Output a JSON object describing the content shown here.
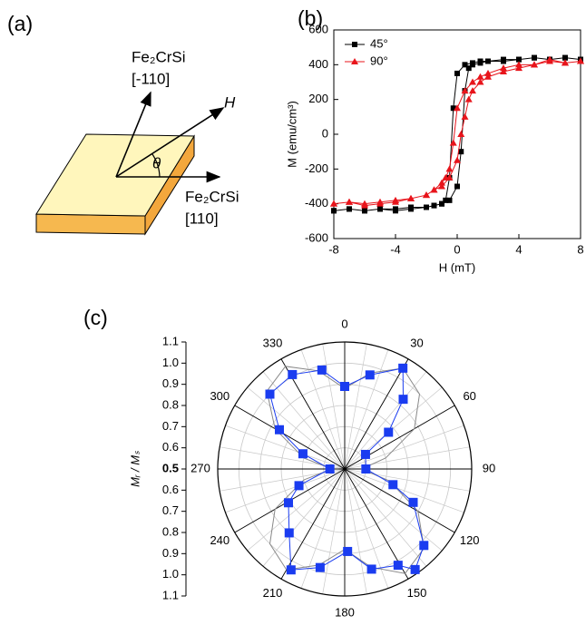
{
  "panel_labels": [
    "(a)",
    "(b)",
    "(c)"
  ],
  "diagram": {
    "axis_1": {
      "material": "Fe₂CrSi",
      "direction": "[-110]"
    },
    "axis_2": {
      "material": "Fe₂CrSi",
      "direction": "[110]"
    },
    "field": "H",
    "angle": "θ"
  },
  "chart_data": [
    {
      "type": "line",
      "x_label": "H (mT)",
      "y_label": "M (emu/cm³)",
      "xlim": [
        -8,
        8
      ],
      "xticks": [
        -8,
        -4,
        0,
        4,
        8
      ],
      "ylim": [
        -600,
        600
      ],
      "yticks": [
        -600,
        -400,
        -200,
        0,
        200,
        400,
        600
      ],
      "legend": "upper left",
      "series": [
        {
          "name": "45°",
          "color": "#000000",
          "marker": "square",
          "x": [
            -8,
            -7,
            -6,
            -5,
            -4,
            -3,
            -2,
            -1.5,
            -1,
            -0.5,
            0,
            0.25,
            0.5,
            0.75,
            1,
            1.5,
            2,
            3,
            4,
            5,
            6,
            7,
            8,
            8,
            7,
            6,
            5,
            4,
            3,
            2,
            1.5,
            1,
            0.5,
            0,
            -0.25,
            -0.5,
            -0.75,
            -1,
            -1.5,
            -2,
            -3,
            -4,
            -5,
            -6,
            -7,
            -8
          ],
          "values": [
            -440,
            -430,
            -440,
            -430,
            -430,
            -420,
            -420,
            -410,
            -400,
            -380,
            -300,
            -100,
            250,
            380,
            400,
            410,
            420,
            430,
            430,
            440,
            430,
            440,
            430,
            430,
            440,
            430,
            440,
            430,
            420,
            420,
            420,
            410,
            400,
            350,
            150,
            -250,
            -380,
            -400,
            -410,
            -420,
            -430,
            -440,
            -430,
            -440,
            -430,
            -440
          ]
        },
        {
          "name": "90°",
          "color": "#e8141b",
          "marker": "triangle",
          "x": [
            -8,
            -7,
            -6,
            -5,
            -4,
            -3,
            -2,
            -1.5,
            -1,
            -0.5,
            0,
            0.25,
            0.5,
            0.75,
            1,
            1.5,
            2,
            3,
            4,
            5,
            6,
            7,
            8,
            8,
            7,
            6,
            5,
            4,
            3,
            2,
            1.5,
            1,
            0.5,
            0,
            -0.25,
            -0.5,
            -0.75,
            -1,
            -1.5,
            -2,
            -3,
            -4,
            -5,
            -6,
            -7,
            -8
          ],
          "values": [
            -400,
            -390,
            -410,
            -400,
            -390,
            -370,
            -350,
            -320,
            -300,
            -250,
            -150,
            0,
            100,
            200,
            250,
            300,
            330,
            360,
            380,
            400,
            420,
            410,
            420,
            420,
            410,
            430,
            400,
            400,
            380,
            350,
            330,
            300,
            250,
            150,
            -50,
            -200,
            -250,
            -280,
            -320,
            -350,
            -370,
            -380,
            -390,
            -400,
            -390,
            -400
          ]
        }
      ]
    },
    {
      "type": "polar",
      "r_label": "Mᵣ / Mₛ",
      "theta_ticks": [
        0,
        30,
        60,
        90,
        120,
        150,
        180,
        210,
        240,
        270,
        300,
        330
      ],
      "rlim": [
        0.5,
        1.1
      ],
      "rticks": [
        0.5,
        0.6,
        0.7,
        0.8,
        0.9,
        {
          "value": 1,
          "label": "1.0"
        },
        1.1
      ],
      "series": [
        {
          "color": "#888888",
          "theta": [
            0,
            15,
            30,
            45,
            60,
            75,
            90,
            105,
            120,
            135,
            150,
            165,
            180,
            195,
            210,
            225,
            240,
            255,
            270,
            285,
            300,
            315,
            330,
            345
          ],
          "values": [
            0.88,
            0.97,
            1.05,
            1.0,
            0.88,
            0.7,
            0.58,
            0.72,
            0.9,
            1.03,
            1.07,
            0.98,
            0.88,
            0.97,
            1.05,
            1.0,
            0.88,
            0.7,
            0.56,
            0.7,
            0.88,
            1.02,
            1.06,
            0.98
          ]
        },
        {
          "color": "#1a3cf0",
          "marker": "square",
          "theta": [
            0,
            15,
            30,
            40,
            50,
            55,
            90,
            108,
            116,
            134,
            145,
            151,
            165,
            178,
            194,
            208,
            221,
            239,
            250,
            270,
            290,
            301,
            315,
            331,
            347
          ],
          "values": [
            0.89,
            0.96,
            1.05,
            0.93,
            0.77,
            0.62,
            0.6,
            0.74,
            0.86,
            1.02,
            1.08,
            1.02,
            0.99,
            0.89,
            0.98,
            1.04,
            0.9,
            0.81,
            0.73,
            0.57,
            0.71,
            0.86,
            1.0,
            1.01,
            0.98
          ]
        }
      ]
    }
  ]
}
